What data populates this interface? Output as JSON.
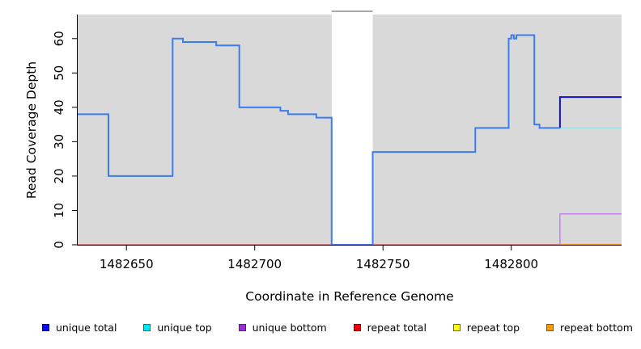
{
  "chart_data": {
    "type": "line",
    "subtype": "step-coverage",
    "title": "",
    "xlabel": "Coordinate in Reference Genome",
    "ylabel": "Read Coverage Depth",
    "xlim": [
      1482631,
      1482843
    ],
    "ylim": [
      0,
      67
    ],
    "x_ticks": [
      1482650,
      1482700,
      1482750,
      1482800
    ],
    "y_ticks": [
      0,
      10,
      20,
      30,
      40,
      50,
      60
    ],
    "grid": "off",
    "panel_bg": "#d9d9d9",
    "axis_color": "#000000",
    "masked_region": {
      "x1": 1482730,
      "x2": 1482746,
      "fill": "#ffffff",
      "cap_color": "#8c8c8c"
    },
    "series": [
      {
        "name": "repeat total",
        "color": "#dd5377",
        "width": 1.5,
        "layer": "below-mask",
        "steps": [
          [
            1482631,
            0
          ]
        ],
        "end": 1482843
      },
      {
        "name": "repeat bottom",
        "color": "#f5920f",
        "width": 1.8,
        "layer": "above-mask",
        "steps": [
          [
            1482819,
            0
          ]
        ],
        "end": 1482843
      },
      {
        "name": "unique bottom",
        "color": "#c183ea",
        "width": 1.5,
        "layer": "above-mask",
        "steps": [
          [
            1482819,
            0
          ],
          [
            1482819,
            9
          ]
        ],
        "end": 1482843
      },
      {
        "name": "unique top",
        "color": "#9fe8ec",
        "width": 1.8,
        "layer": "above-mask",
        "steps": [
          [
            1482819,
            34
          ]
        ],
        "end": 1482843
      },
      {
        "name": "unique total right",
        "color": "#0f10d8",
        "width": 2,
        "layer": "above-mask",
        "steps": [
          [
            1482819,
            34
          ],
          [
            1482819,
            43
          ]
        ],
        "end": 1482843
      },
      {
        "name": "unique total",
        "color": "#3b7df0",
        "width": 2,
        "layer": "above-mask",
        "steps": [
          [
            1482631,
            38
          ],
          [
            1482643,
            20
          ],
          [
            1482668,
            60
          ],
          [
            1482672,
            59
          ],
          [
            1482685,
            58
          ],
          [
            1482694,
            40
          ],
          [
            1482710,
            39
          ],
          [
            1482713,
            38
          ],
          [
            1482724,
            37
          ],
          [
            1482730,
            0
          ],
          [
            1482746,
            27
          ],
          [
            1482786,
            34
          ],
          [
            1482799,
            60
          ],
          [
            1482800,
            61
          ],
          [
            1482801,
            60
          ],
          [
            1482802,
            61
          ],
          [
            1482809,
            35
          ],
          [
            1482811,
            34
          ]
        ],
        "end": 1482819
      }
    ],
    "legend_position": "bottom",
    "legend": [
      {
        "label": "unique total",
        "fill": "#0b0bee",
        "border": "#000090"
      },
      {
        "label": "unique top",
        "fill": "#00e5ee",
        "border": "#007d8c"
      },
      {
        "label": "unique bottom",
        "fill": "#9b30d0",
        "border": "#5c1a86"
      },
      {
        "label": "repeat total",
        "fill": "#ee0008",
        "border": "#8c0005"
      },
      {
        "label": "repeat top",
        "fill": "#fdfd0a",
        "border": "#6e6e00"
      },
      {
        "label": "repeat bottom",
        "fill": "#f59a0b",
        "border": "#8c5a00"
      }
    ]
  }
}
